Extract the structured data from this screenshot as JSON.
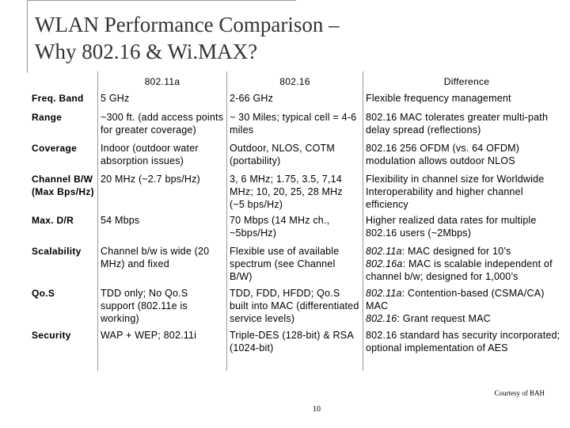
{
  "slide": {
    "title_line1": "WLAN Performance Comparison –",
    "title_line2": "Why 802.16 & Wi.MAX?",
    "footer_note": "Courtesy of BAH",
    "page_number": "10"
  },
  "table": {
    "columns": [
      "",
      "802.11a",
      "802.16",
      "Difference"
    ],
    "rows": [
      {
        "label": "Freq. Band",
        "a": "5 GHz",
        "b": "2-66 GHz",
        "diff": "Flexible frequency management"
      },
      {
        "label": "Range",
        "a": "~300 ft. (add access points for greater coverage)",
        "b": "~ 30 Miles; typical cell = 4-6 miles",
        "diff": "802.16 MAC tolerates greater multi-path delay spread (reflections)"
      },
      {
        "label": "Coverage",
        "a": "Indoor (outdoor water absorption issues)",
        "b": "Outdoor, NLOS, COTM (portability)",
        "diff": "802.16 256 OFDM (vs. 64 OFDM) modulation allows outdoor NLOS"
      },
      {
        "label": "Channel B/W (Max Bps/Hz)",
        "a": "20 MHz (~2.7 bps/Hz)",
        "b": "3, 6 MHz; 1.75, 3.5, 7,14 MHz; 10, 20, 25, 28 MHz (~5 bps/Hz)",
        "diff": "Flexibility in channel size for Worldwide Interoperability and higher channel efficiency"
      },
      {
        "label": "Max. D/R",
        "a": "54 Mbps",
        "b": "70 Mbps (14 MHz ch., ~5bps/Hz)",
        "diff": "Higher realized data rates for multiple 802.16 users (~2Mbps)"
      },
      {
        "label": "Scalability",
        "a": "Channel b/w is wide (20 MHz) and fixed",
        "b": "Flexible use of available spectrum (see Channel B/W)",
        "diff_lead_1": "802.11a",
        "diff_text_1": ": MAC designed for 10’s",
        "diff_lead_2": "802.16a",
        "diff_text_2": ": MAC is scalable independent of channel b/w; designed for 1,000’s"
      },
      {
        "label": "Qo.S",
        "a": "TDD only; No Qo.S support (802.11e is working)",
        "b": "TDD, FDD, HFDD; Qo.S built into MAC (differentiated service levels)",
        "diff_lead_1": "802.11a",
        "diff_text_1": ": Contention-based (CSMA/CA) MAC",
        "diff_lead_2": "802.16",
        "diff_text_2": ": Grant request MAC"
      },
      {
        "label": "Security",
        "a": "WAP + WEP; 802.11i",
        "b": "Triple-DES (128-bit) & RSA (1024-bit)",
        "diff": "802.16 standard has security incorporated; optional implementation of AES"
      }
    ]
  }
}
